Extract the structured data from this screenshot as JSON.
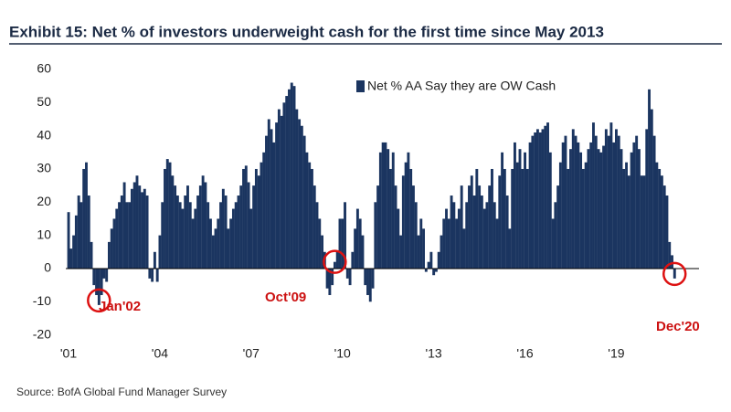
{
  "chart_data": {
    "type": "bar",
    "title": "Exhibit 15: Net % of investors underweight cash for the first time since May 2013",
    "source": "Source: BofA Global Fund Manager Survey",
    "annotations": [
      "Jan'02",
      "Oct'09",
      "Dec'20"
    ],
    "color": "#1b3560",
    "ylim": [
      -20,
      60
    ],
    "yticks": [
      -20,
      -10,
      0,
      10,
      20,
      30,
      40,
      50,
      60
    ],
    "grid": false,
    "series": [
      {
        "name": "Net % AA Say they are OW Cash",
        "color": "#1b3560",
        "values": [
          17,
          6,
          10,
          16,
          22,
          20,
          30,
          32,
          22,
          8,
          -5,
          -8,
          -11,
          -8,
          -3,
          -4,
          8,
          12,
          15,
          18,
          20,
          22,
          26,
          20,
          20,
          24,
          26,
          28,
          25,
          23,
          24,
          22,
          -3,
          -4,
          5,
          -4,
          10,
          20,
          30,
          33,
          32,
          28,
          25,
          22,
          20,
          18,
          22,
          25,
          20,
          15,
          18,
          22,
          25,
          28,
          26,
          20,
          15,
          10,
          12,
          15,
          20,
          24,
          22,
          12,
          15,
          18,
          20,
          22,
          25,
          30,
          31,
          26,
          18,
          25,
          30,
          28,
          32,
          35,
          40,
          45,
          42,
          38,
          44,
          48,
          46,
          50,
          52,
          54,
          56,
          55,
          48,
          45,
          43,
          40,
          35,
          32,
          30,
          25,
          20,
          15,
          10,
          5,
          -6,
          -8,
          -5,
          2,
          5,
          15,
          15,
          20,
          -3,
          -5,
          5,
          12,
          18,
          15,
          10,
          -5,
          -8,
          -10,
          -6,
          20,
          25,
          35,
          38,
          38,
          36,
          30,
          35,
          25,
          18,
          10,
          28,
          32,
          35,
          30,
          25,
          20,
          10,
          15,
          12,
          -1,
          2,
          5,
          -2,
          -1,
          5,
          10,
          15,
          18,
          15,
          22,
          20,
          15,
          18,
          25,
          12,
          20,
          25,
          28,
          22,
          30,
          25,
          22,
          18,
          20,
          25,
          30,
          20,
          15,
          28,
          35,
          30,
          22,
          12,
          30,
          38,
          32,
          36,
          30,
          35,
          30,
          38,
          40,
          41,
          42,
          41,
          42,
          43,
          44,
          35,
          15,
          20,
          25,
          32,
          38,
          40,
          30,
          36,
          42,
          40,
          38,
          35,
          30,
          32,
          36,
          38,
          44,
          40,
          36,
          35,
          37,
          42,
          40,
          44,
          38,
          42,
          40,
          36,
          30,
          32,
          28,
          35,
          38,
          40,
          36,
          28,
          28,
          42,
          54,
          48,
          40,
          32,
          30,
          28,
          25,
          22,
          8,
          4,
          -3
        ]
      }
    ],
    "categories": [
      "'01",
      null,
      null,
      null,
      null,
      null,
      null,
      null,
      null,
      null,
      null,
      null,
      null,
      null,
      null,
      null,
      null,
      null,
      null,
      null,
      null,
      null,
      null,
      null,
      null,
      null,
      null,
      null,
      null,
      null,
      null,
      null,
      null,
      null,
      null,
      null,
      "'04",
      null,
      null,
      null,
      null,
      null,
      null,
      null,
      null,
      null,
      null,
      null,
      null,
      null,
      null,
      null,
      null,
      null,
      null,
      null,
      null,
      null,
      null,
      null,
      null,
      null,
      null,
      null,
      null,
      null,
      null,
      null,
      null,
      null,
      null,
      null,
      "'07",
      null,
      null,
      null,
      null,
      null,
      null,
      null,
      null,
      null,
      null,
      null,
      null,
      null,
      null,
      null,
      null,
      null,
      null,
      null,
      null,
      null,
      null,
      null,
      null,
      null,
      null,
      null,
      null,
      null,
      null,
      null,
      null,
      null,
      null,
      null,
      "'10",
      null,
      null,
      null,
      null,
      null,
      null,
      null,
      null,
      null,
      null,
      null,
      null,
      null,
      null,
      null,
      null,
      null,
      null,
      null,
      null,
      null,
      null,
      null,
      null,
      null,
      null,
      null,
      null,
      null,
      null,
      null,
      null,
      null,
      null,
      null,
      "'13",
      null,
      null,
      null,
      null,
      null,
      null,
      null,
      null,
      null,
      null,
      null,
      null,
      null,
      null,
      null,
      null,
      null,
      null,
      null,
      null,
      null,
      null,
      null,
      null,
      null,
      null,
      null,
      null,
      null,
      null,
      null,
      null,
      null,
      null,
      null,
      "'16",
      null,
      null,
      null,
      null,
      null,
      null,
      null,
      null,
      null,
      null,
      null,
      null,
      null,
      null,
      null,
      null,
      null,
      null,
      null,
      null,
      null,
      null,
      null,
      null,
      null,
      null,
      null,
      null,
      null,
      null,
      null,
      null,
      null,
      null,
      null,
      "'19",
      null,
      null,
      null,
      null,
      null,
      null,
      null,
      null,
      null,
      null,
      null,
      null,
      null,
      null,
      null,
      null,
      null,
      null,
      null,
      null,
      null,
      null,
      null
    ]
  }
}
